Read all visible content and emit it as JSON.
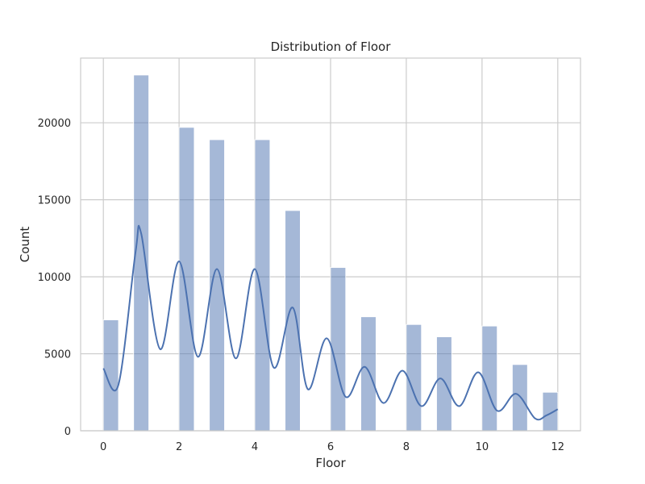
{
  "chart_data": {
    "type": "bar",
    "title": "Distribution of Floor",
    "xlabel": "Floor",
    "ylabel": "Count",
    "xlim": [
      -0.6,
      12.6
    ],
    "ylim": [
      0,
      24200
    ],
    "x_ticks": [
      0,
      2,
      4,
      6,
      8,
      10,
      12
    ],
    "y_ticks": [
      0,
      5000,
      10000,
      15000,
      20000
    ],
    "grid": true,
    "bin_width": 0.4,
    "bins": [
      {
        "start": 0.0,
        "value": 7200
      },
      {
        "start": 0.8,
        "value": 23100
      },
      {
        "start": 2.0,
        "value": 19700
      },
      {
        "start": 2.8,
        "value": 18900
      },
      {
        "start": 4.0,
        "value": 18900
      },
      {
        "start": 4.8,
        "value": 14300
      },
      {
        "start": 6.0,
        "value": 10600
      },
      {
        "start": 6.8,
        "value": 7400
      },
      {
        "start": 8.0,
        "value": 6900
      },
      {
        "start": 8.8,
        "value": 6100
      },
      {
        "start": 10.0,
        "value": 6800
      },
      {
        "start": 10.8,
        "value": 4300
      },
      {
        "start": 11.6,
        "value": 2500
      }
    ],
    "kde": {
      "x": [
        0,
        0.4,
        0.85,
        1.0,
        1.5,
        2.0,
        2.5,
        3.0,
        3.5,
        4.0,
        4.5,
        5.0,
        5.4,
        5.9,
        6.4,
        6.9,
        7.4,
        7.9,
        8.4,
        8.9,
        9.4,
        9.9,
        10.4,
        10.9,
        11.4,
        11.7,
        12.0
      ],
      "y": [
        4050,
        3000,
        11600,
        12800,
        5300,
        11000,
        4800,
        10500,
        4700,
        10500,
        4100,
        8000,
        2700,
        6000,
        2200,
        4150,
        1800,
        3900,
        1600,
        3400,
        1600,
        3800,
        1300,
        2400,
        800,
        1000,
        1400
      ]
    },
    "colors": {
      "bar_fill": "#4c72b0",
      "bar_opacity": 0.5,
      "kde_line": "#4c72b0",
      "grid": "#cccccc",
      "axes_frame": "#cccccc"
    }
  }
}
